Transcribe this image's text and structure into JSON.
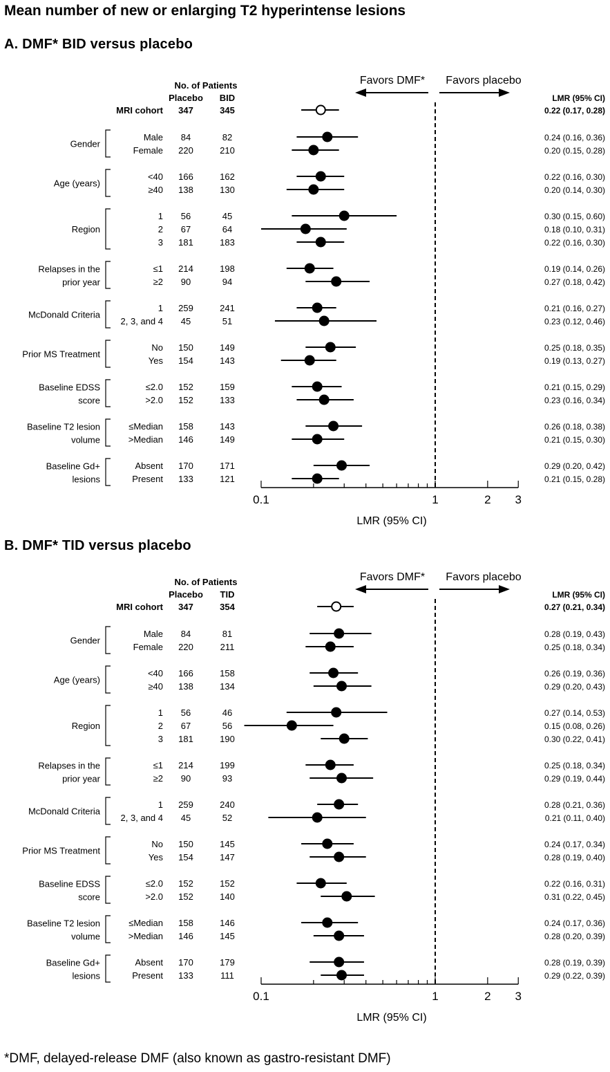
{
  "title": "Mean number of new or enlarging T2 hyperintense lesions",
  "footnote": "*DMF, delayed-release DMF (also known as gastro-resistant DMF)",
  "chart_data": [
    {
      "type": "forest",
      "panel_title": "A. DMF* BID versus placebo",
      "xlabel": "LMR (95% CI)",
      "xscale": "log",
      "xlim": [
        0.1,
        3
      ],
      "xticks": [
        "0.1",
        "1",
        "2",
        "3"
      ],
      "reference_line": 1,
      "favors_left": "Favors DMF*",
      "favors_right": "Favors placebo",
      "patients_header": "No. of Patients",
      "col_placebo": "Placebo",
      "col_treatment": "BID",
      "lmr_header": "LMR (95% CI)",
      "overall": {
        "label": "MRI cohort",
        "placebo": "347",
        "treatment": "345",
        "lmr": 0.22,
        "lo": 0.17,
        "hi": 0.28,
        "text": "0.22 (0.17, 0.28)"
      },
      "groups": [
        {
          "name": [
            "Gender"
          ],
          "rows": [
            {
              "label": "Male",
              "placebo": "84",
              "treatment": "82",
              "lmr": 0.24,
              "lo": 0.16,
              "hi": 0.36,
              "text": "0.24 (0.16, 0.36)"
            },
            {
              "label": "Female",
              "placebo": "220",
              "treatment": "210",
              "lmr": 0.2,
              "lo": 0.15,
              "hi": 0.28,
              "text": "0.20 (0.15, 0.28)"
            }
          ]
        },
        {
          "name": [
            "Age (years)"
          ],
          "rows": [
            {
              "label": "<40",
              "placebo": "166",
              "treatment": "162",
              "lmr": 0.22,
              "lo": 0.16,
              "hi": 0.3,
              "text": "0.22 (0.16, 0.30)"
            },
            {
              "label": "≥40",
              "placebo": "138",
              "treatment": "130",
              "lmr": 0.2,
              "lo": 0.14,
              "hi": 0.3,
              "text": "0.20 (0.14, 0.30)"
            }
          ]
        },
        {
          "name": [
            "Region"
          ],
          "rows": [
            {
              "label": "1",
              "placebo": "56",
              "treatment": "45",
              "lmr": 0.3,
              "lo": 0.15,
              "hi": 0.6,
              "text": "0.30 (0.15, 0.60)"
            },
            {
              "label": "2",
              "placebo": "67",
              "treatment": "64",
              "lmr": 0.18,
              "lo": 0.1,
              "hi": 0.31,
              "text": "0.18 (0.10, 0.31)"
            },
            {
              "label": "3",
              "placebo": "181",
              "treatment": "183",
              "lmr": 0.22,
              "lo": 0.16,
              "hi": 0.3,
              "text": "0.22 (0.16, 0.30)"
            }
          ]
        },
        {
          "name": [
            "Relapses in the",
            "prior year"
          ],
          "rows": [
            {
              "label": "≤1",
              "placebo": "214",
              "treatment": "198",
              "lmr": 0.19,
              "lo": 0.14,
              "hi": 0.26,
              "text": "0.19 (0.14, 0.26)"
            },
            {
              "label": "≥2",
              "placebo": "90",
              "treatment": "94",
              "lmr": 0.27,
              "lo": 0.18,
              "hi": 0.42,
              "text": "0.27 (0.18, 0.42)"
            }
          ]
        },
        {
          "name": [
            "McDonald Criteria"
          ],
          "rows": [
            {
              "label": "1",
              "placebo": "259",
              "treatment": "241",
              "lmr": 0.21,
              "lo": 0.16,
              "hi": 0.27,
              "text": "0.21 (0.16, 0.27)"
            },
            {
              "label": "2, 3, and 4",
              "placebo": "45",
              "treatment": "51",
              "lmr": 0.23,
              "lo": 0.12,
              "hi": 0.46,
              "text": "0.23 (0.12, 0.46)"
            }
          ]
        },
        {
          "name": [
            "Prior MS Treatment"
          ],
          "rows": [
            {
              "label": "No",
              "placebo": "150",
              "treatment": "149",
              "lmr": 0.25,
              "lo": 0.18,
              "hi": 0.35,
              "text": "0.25 (0.18, 0.35)"
            },
            {
              "label": "Yes",
              "placebo": "154",
              "treatment": "143",
              "lmr": 0.19,
              "lo": 0.13,
              "hi": 0.27,
              "text": "0.19 (0.13, 0.27)"
            }
          ]
        },
        {
          "name": [
            "Baseline EDSS",
            "score"
          ],
          "rows": [
            {
              "label": "≤2.0",
              "placebo": "152",
              "treatment": "159",
              "lmr": 0.21,
              "lo": 0.15,
              "hi": 0.29,
              "text": "0.21 (0.15, 0.29)"
            },
            {
              "label": ">2.0",
              "placebo": "152",
              "treatment": "133",
              "lmr": 0.23,
              "lo": 0.16,
              "hi": 0.34,
              "text": "0.23 (0.16, 0.34)"
            }
          ]
        },
        {
          "name": [
            "Baseline T2 lesion",
            "volume"
          ],
          "rows": [
            {
              "label": "≤Median",
              "placebo": "158",
              "treatment": "143",
              "lmr": 0.26,
              "lo": 0.18,
              "hi": 0.38,
              "text": "0.26 (0.18, 0.38)"
            },
            {
              "label": ">Median",
              "placebo": "146",
              "treatment": "149",
              "lmr": 0.21,
              "lo": 0.15,
              "hi": 0.3,
              "text": "0.21 (0.15, 0.30)"
            }
          ]
        },
        {
          "name": [
            "Baseline Gd+",
            "lesions"
          ],
          "rows": [
            {
              "label": "Absent",
              "placebo": "170",
              "treatment": "171",
              "lmr": 0.29,
              "lo": 0.2,
              "hi": 0.42,
              "text": "0.29 (0.20, 0.42)"
            },
            {
              "label": "Present",
              "placebo": "133",
              "treatment": "121",
              "lmr": 0.21,
              "lo": 0.15,
              "hi": 0.28,
              "text": "0.21 (0.15, 0.28)"
            }
          ]
        }
      ]
    },
    {
      "type": "forest",
      "panel_title": "B. DMF* TID versus placebo",
      "xlabel": "LMR (95% CI)",
      "xscale": "log",
      "xlim": [
        0.1,
        3
      ],
      "xticks": [
        "0.1",
        "1",
        "2",
        "3"
      ],
      "reference_line": 1,
      "favors_left": "Favors DMF*",
      "favors_right": "Favors placebo",
      "patients_header": "No. of Patients",
      "col_placebo": "Placebo",
      "col_treatment": "TID",
      "lmr_header": "LMR (95% CI)",
      "overall": {
        "label": "MRI cohort",
        "placebo": "347",
        "treatment": "354",
        "lmr": 0.27,
        "lo": 0.21,
        "hi": 0.34,
        "text": "0.27 (0.21, 0.34)"
      },
      "groups": [
        {
          "name": [
            "Gender"
          ],
          "rows": [
            {
              "label": "Male",
              "placebo": "84",
              "treatment": "81",
              "lmr": 0.28,
              "lo": 0.19,
              "hi": 0.43,
              "text": "0.28 (0.19, 0.43)"
            },
            {
              "label": "Female",
              "placebo": "220",
              "treatment": "211",
              "lmr": 0.25,
              "lo": 0.18,
              "hi": 0.34,
              "text": "0.25 (0.18, 0.34)"
            }
          ]
        },
        {
          "name": [
            "Age (years)"
          ],
          "rows": [
            {
              "label": "<40",
              "placebo": "166",
              "treatment": "158",
              "lmr": 0.26,
              "lo": 0.19,
              "hi": 0.36,
              "text": "0.26 (0.19, 0.36)"
            },
            {
              "label": "≥40",
              "placebo": "138",
              "treatment": "134",
              "lmr": 0.29,
              "lo": 0.2,
              "hi": 0.43,
              "text": "0.29 (0.20, 0.43)"
            }
          ]
        },
        {
          "name": [
            "Region"
          ],
          "rows": [
            {
              "label": "1",
              "placebo": "56",
              "treatment": "46",
              "lmr": 0.27,
              "lo": 0.14,
              "hi": 0.53,
              "text": "0.27 (0.14, 0.53)"
            },
            {
              "label": "2",
              "placebo": "67",
              "treatment": "56",
              "lmr": 0.15,
              "lo": 0.08,
              "hi": 0.26,
              "text": "0.15 (0.08, 0.26)"
            },
            {
              "label": "3",
              "placebo": "181",
              "treatment": "190",
              "lmr": 0.3,
              "lo": 0.22,
              "hi": 0.41,
              "text": "0.30 (0.22, 0.41)"
            }
          ]
        },
        {
          "name": [
            "Relapses in the",
            "prior year"
          ],
          "rows": [
            {
              "label": "≤1",
              "placebo": "214",
              "treatment": "199",
              "lmr": 0.25,
              "lo": 0.18,
              "hi": 0.34,
              "text": "0.25 (0.18, 0.34)"
            },
            {
              "label": "≥2",
              "placebo": "90",
              "treatment": "93",
              "lmr": 0.29,
              "lo": 0.19,
              "hi": 0.44,
              "text": "0.29 (0.19, 0.44)"
            }
          ]
        },
        {
          "name": [
            "McDonald Criteria"
          ],
          "rows": [
            {
              "label": "1",
              "placebo": "259",
              "treatment": "240",
              "lmr": 0.28,
              "lo": 0.21,
              "hi": 0.36,
              "text": "0.28 (0.21, 0.36)"
            },
            {
              "label": "2, 3, and 4",
              "placebo": "45",
              "treatment": "52",
              "lmr": 0.21,
              "lo": 0.11,
              "hi": 0.4,
              "text": "0.21 (0.11, 0.40)"
            }
          ]
        },
        {
          "name": [
            "Prior MS Treatment"
          ],
          "rows": [
            {
              "label": "No",
              "placebo": "150",
              "treatment": "145",
              "lmr": 0.24,
              "lo": 0.17,
              "hi": 0.34,
              "text": "0.24 (0.17, 0.34)"
            },
            {
              "label": "Yes",
              "placebo": "154",
              "treatment": "147",
              "lmr": 0.28,
              "lo": 0.19,
              "hi": 0.4,
              "text": "0.28 (0.19, 0.40)"
            }
          ]
        },
        {
          "name": [
            "Baseline EDSS",
            "score"
          ],
          "rows": [
            {
              "label": "≤2.0",
              "placebo": "152",
              "treatment": "152",
              "lmr": 0.22,
              "lo": 0.16,
              "hi": 0.31,
              "text": "0.22 (0.16, 0.31)"
            },
            {
              "label": ">2.0",
              "placebo": "152",
              "treatment": "140",
              "lmr": 0.31,
              "lo": 0.22,
              "hi": 0.45,
              "text": "0.31 (0.22, 0.45)"
            }
          ]
        },
        {
          "name": [
            "Baseline T2 lesion",
            "volume"
          ],
          "rows": [
            {
              "label": "≤Median",
              "placebo": "158",
              "treatment": "146",
              "lmr": 0.24,
              "lo": 0.17,
              "hi": 0.36,
              "text": "0.24 (0.17, 0.36)"
            },
            {
              "label": ">Median",
              "placebo": "146",
              "treatment": "145",
              "lmr": 0.28,
              "lo": 0.2,
              "hi": 0.39,
              "text": "0.28 (0.20, 0.39)"
            }
          ]
        },
        {
          "name": [
            "Baseline Gd+",
            "lesions"
          ],
          "rows": [
            {
              "label": "Absent",
              "placebo": "170",
              "treatment": "179",
              "lmr": 0.28,
              "lo": 0.19,
              "hi": 0.39,
              "text": "0.28 (0.19, 0.39)"
            },
            {
              "label": "Present",
              "placebo": "133",
              "treatment": "111",
              "lmr": 0.29,
              "lo": 0.22,
              "hi": 0.39,
              "text": "0.29 (0.22, 0.39)"
            }
          ]
        }
      ]
    }
  ]
}
